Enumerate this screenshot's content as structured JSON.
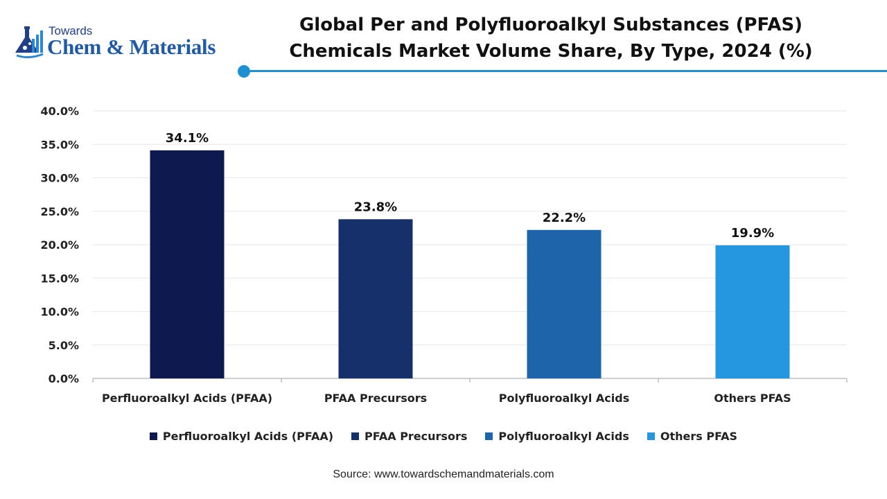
{
  "logo": {
    "top_text": "Towards",
    "brand_text": "Chem & Materials"
  },
  "title": {
    "line1": "Global Per and Polyfluoroalkyl Substances (PFAS)",
    "line2": "Chemicals Market Volume Share, By Type, 2024 (%)"
  },
  "colors": {
    "accent": "#1e8fd3",
    "grid": "#e6e6e6",
    "axis": "#bfbfbf"
  },
  "chart_data": {
    "type": "bar",
    "title": "Global Per and Polyfluoroalkyl Substances (PFAS) Chemicals Market Volume Share, By Type, 2024 (%)",
    "categories": [
      "Perfluoroalkyl Acids (PFAA)",
      "PFAA Precursors",
      "Polyfluoroalkyl Acids",
      "Others PFAS"
    ],
    "values": [
      34.1,
      23.8,
      22.2,
      19.9
    ],
    "value_labels": [
      "34.1%",
      "23.8%",
      "22.2%",
      "19.9%"
    ],
    "colors": [
      "#0e1a4f",
      "#16306b",
      "#1e64aa",
      "#2497e0"
    ],
    "ylim": [
      0,
      40
    ],
    "yticks": [
      0,
      5,
      10,
      15,
      20,
      25,
      30,
      35,
      40
    ],
    "ytick_labels": [
      "0.0%",
      "5.0%",
      "10.0%",
      "15.0%",
      "20.0%",
      "25.0%",
      "30.0%",
      "35.0%",
      "40.0%"
    ],
    "xlabel": "",
    "ylabel": "",
    "grid": true,
    "legend_position": "bottom"
  },
  "legend": [
    {
      "label": "Perfluoroalkyl Acids (PFAA)",
      "color": "#0e1a4f"
    },
    {
      "label": "PFAA Precursors",
      "color": "#16306b"
    },
    {
      "label": "Polyfluoroalkyl Acids",
      "color": "#1e64aa"
    },
    {
      "label": "Others PFAS",
      "color": "#2497e0"
    }
  ],
  "source": "Source: www.towardschemandmaterials.com"
}
